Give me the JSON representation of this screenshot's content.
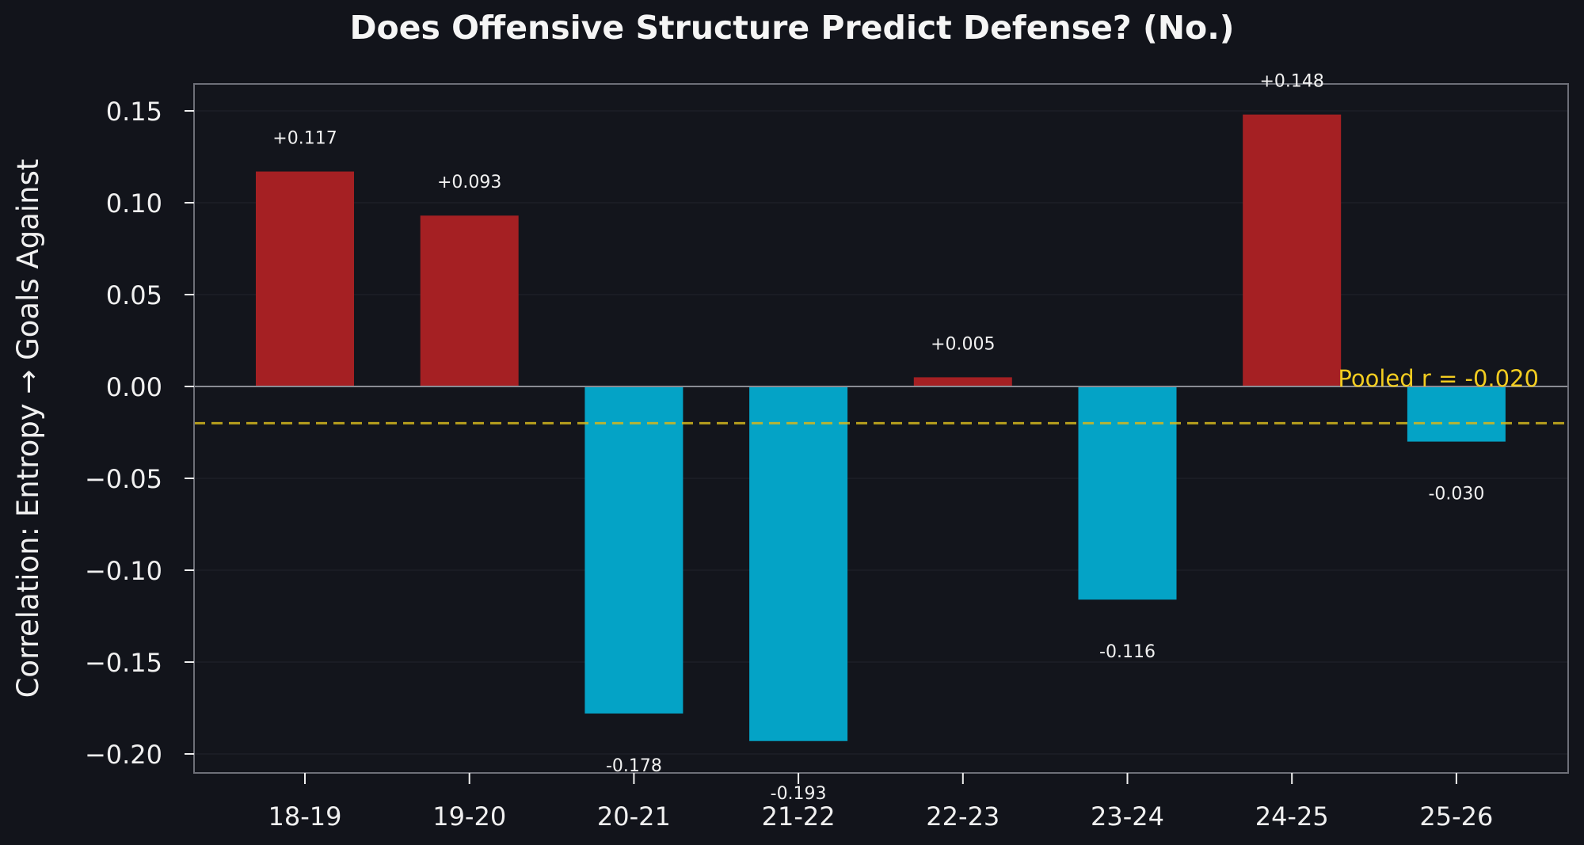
{
  "chart_data": {
    "type": "bar",
    "title": "Does Offensive Structure Predict Defense? (No.)",
    "xlabel": "",
    "ylabel": "Correlation: Entropy → Goals Against",
    "categories": [
      "18-19",
      "19-20",
      "20-21",
      "21-22",
      "22-23",
      "23-24",
      "24-25",
      "25-26"
    ],
    "values": [
      0.117,
      0.093,
      -0.178,
      -0.193,
      0.005,
      -0.116,
      0.148,
      -0.03
    ],
    "value_labels": [
      "+0.117",
      "+0.093",
      "-0.178",
      "-0.193",
      "+0.005",
      "-0.116",
      "+0.148",
      "-0.030"
    ],
    "ylim": [
      -0.21,
      0.165
    ],
    "yticks": [
      0.15,
      0.1,
      0.05,
      0.0,
      -0.05,
      -0.1,
      -0.15,
      -0.2
    ],
    "ytick_labels": [
      "0.15",
      "0.10",
      "0.05",
      "0.00",
      "−0.05",
      "−0.10",
      "−0.15",
      "−0.20"
    ],
    "reference_line": {
      "value": -0.02,
      "label": "Pooled r = -0.020",
      "style": "dashed"
    },
    "grid": true,
    "colors": {
      "background": "#12141b",
      "plot_background": "#13151c",
      "positive": "#a52023",
      "negative": "#04a3c6",
      "reference": "#d4b81e",
      "reference_label": "#f2cc20",
      "text": "#f0f0f0",
      "axis": "#6d6f78",
      "grid": "#1c1f27",
      "zero_line": "#8a8c94"
    }
  }
}
